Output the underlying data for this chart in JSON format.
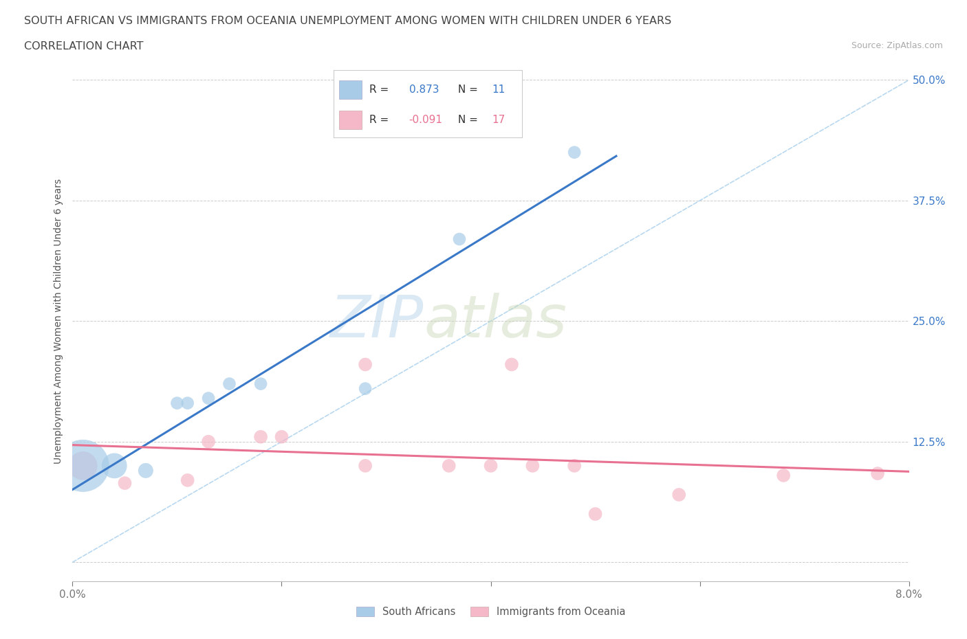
{
  "title_line1": "SOUTH AFRICAN VS IMMIGRANTS FROM OCEANIA UNEMPLOYMENT AMONG WOMEN WITH CHILDREN UNDER 6 YEARS",
  "title_line2": "CORRELATION CHART",
  "source": "Source: ZipAtlas.com",
  "ylabel": "Unemployment Among Women with Children Under 6 years",
  "blue_R": 0.873,
  "blue_N": 11,
  "pink_R": -0.091,
  "pink_N": 17,
  "blue_color": "#a8cce8",
  "pink_color": "#f5b8c8",
  "blue_line_color": "#3a78c8",
  "pink_line_color": "#e87090",
  "diagonal_color": "#b8d8f0",
  "watermark_color": "#d8edf8",
  "south_africans_x": [
    0.001,
    0.004,
    0.007,
    0.01,
    0.011,
    0.013,
    0.015,
    0.018,
    0.028,
    0.037,
    0.048
  ],
  "south_africans_y": [
    0.1,
    0.1,
    0.095,
    0.165,
    0.165,
    0.17,
    0.185,
    0.185,
    0.18,
    0.335,
    0.425
  ],
  "south_africans_sizes": [
    3000,
    700,
    250,
    180,
    180,
    180,
    180,
    180,
    180,
    180,
    180
  ],
  "immigrants_x": [
    0.001,
    0.005,
    0.011,
    0.013,
    0.018,
    0.02,
    0.028,
    0.028,
    0.036,
    0.04,
    0.042,
    0.044,
    0.048,
    0.05,
    0.058,
    0.068,
    0.077
  ],
  "immigrants_y": [
    0.1,
    0.082,
    0.085,
    0.125,
    0.13,
    0.13,
    0.205,
    0.1,
    0.1,
    0.1,
    0.205,
    0.1,
    0.1,
    0.05,
    0.07,
    0.09,
    0.092
  ],
  "immigrants_sizes": [
    900,
    200,
    200,
    200,
    200,
    200,
    200,
    200,
    200,
    200,
    200,
    200,
    200,
    200,
    200,
    200,
    200
  ],
  "xmin": 0.0,
  "xmax": 0.08,
  "ymin": -0.02,
  "ymax": 0.52,
  "yticks": [
    0.0,
    0.125,
    0.25,
    0.375,
    0.5
  ],
  "ytick_labels": [
    "",
    "12.5%",
    "25.0%",
    "37.5%",
    "50.0%"
  ]
}
